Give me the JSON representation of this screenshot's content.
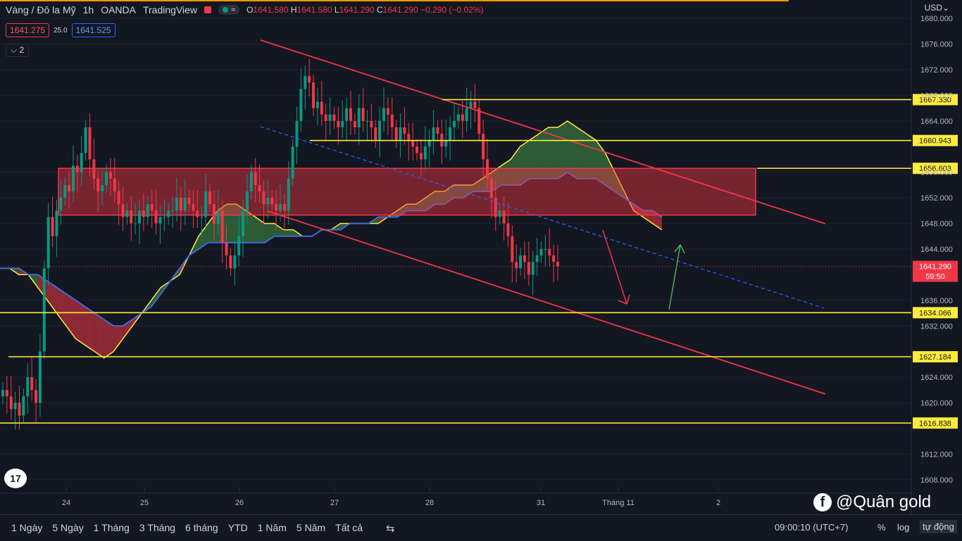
{
  "header": {
    "symbol": "Vàng / Đô la Mỹ",
    "interval": "1h",
    "broker": "OANDA",
    "platform": "TradingView",
    "ohlc": {
      "o_label": "O",
      "o": "1641.580",
      "h_label": "H",
      "h": "1641.580",
      "l_label": "L",
      "l": "1641.290",
      "c_label": "C",
      "c": "1641.290",
      "change": "−0.290 (−0.02%)"
    }
  },
  "quote": {
    "bid": "1641.275",
    "spread": "25.0",
    "ask": "1641.525"
  },
  "indicator_toggle": "2",
  "currency": "USD",
  "bottom": {
    "ranges": [
      "1 Ngày",
      "5 Ngày",
      "1 Tháng",
      "3 Tháng",
      "6 tháng",
      "YTD",
      "1 Năm",
      "5 Năm",
      "Tất cả"
    ],
    "clock": "09:00:10 (UTC+7)",
    "percent": "%",
    "log": "log",
    "auto": "tự động"
  },
  "watermark": "@Quân gold",
  "colors": {
    "up": "#089981",
    "down": "#f23645",
    "level": "#ffeb3b",
    "channel": "#f23645",
    "bg": "#131722"
  },
  "chart_data": {
    "type": "candlestick",
    "ylim": [
      1606,
      1682
    ],
    "y_ticks": [
      1608,
      1612,
      1620,
      1624,
      1632,
      1636,
      1644,
      1648,
      1652,
      1656,
      1664,
      1668,
      1672,
      1676,
      1680
    ],
    "y_tick_labels": [
      "1608.000",
      "1612.000",
      "1620.000",
      "1624.000",
      "1632.000",
      "1636.000",
      "1644.000",
      "1648.000",
      "1652.000",
      "1656.000",
      "1664.000",
      "1668.000",
      "1672.000",
      "1676.000",
      "1680.000"
    ],
    "x_labels": [
      "24",
      "25",
      "26",
      "27",
      "28",
      "31",
      "Tháng 11",
      "2"
    ],
    "current_price": "1641.290",
    "countdown": "59:50",
    "levels": [
      {
        "label": "1667.330",
        "value": 1667.33
      },
      {
        "label": "1660.943",
        "value": 1660.943
      },
      {
        "label": "1656.603",
        "value": 1656.603
      },
      {
        "label": "1634.066",
        "value": 1634.066
      },
      {
        "label": "1627.184",
        "value": 1627.184
      },
      {
        "label": "1616.838",
        "value": 1616.838
      }
    ],
    "zone": {
      "top": 1656.6,
      "bottom": 1649.3
    },
    "closes": [
      1622,
      1621,
      1619,
      1620,
      1618,
      1621,
      1624,
      1622,
      1620,
      1628,
      1641,
      1649,
      1646,
      1650,
      1652,
      1654,
      1653,
      1657,
      1656,
      1659,
      1663,
      1658,
      1655,
      1653,
      1654,
      1656,
      1655,
      1653,
      1651,
      1649,
      1650,
      1648,
      1648,
      1650,
      1649,
      1651,
      1650,
      1648,
      1649,
      1649,
      1650,
      1650,
      1652,
      1650,
      1652,
      1651,
      1650,
      1649,
      1649,
      1653,
      1651,
      1648,
      1650,
      1645,
      1643,
      1641,
      1643,
      1646,
      1650,
      1653,
      1656,
      1654,
      1653,
      1651,
      1652,
      1651,
      1650,
      1651,
      1650,
      1655,
      1660,
      1664,
      1669,
      1671,
      1670,
      1666,
      1667,
      1665,
      1664,
      1665,
      1664,
      1663,
      1664,
      1666,
      1664,
      1663,
      1666,
      1664,
      1664,
      1663,
      1661,
      1664,
      1666,
      1665,
      1663,
      1661,
      1663,
      1662,
      1661,
      1660,
      1659,
      1658,
      1660,
      1661,
      1663,
      1662,
      1660,
      1661,
      1663,
      1664,
      1665,
      1664,
      1666,
      1667,
      1666,
      1662,
      1658,
      1655,
      1652,
      1649,
      1650,
      1648,
      1646,
      1642,
      1641,
      1643,
      1642,
      1640,
      1642,
      1643,
      1644,
      1644,
      1643,
      1642,
      1641.3
    ],
    "ichimoku_cloud": {
      "span_a": [
        1641,
        1641,
        1640,
        1640,
        1638,
        1636,
        1634,
        1632,
        1630,
        1629,
        1628,
        1627,
        1628,
        1630,
        1632,
        1634,
        1636,
        1638,
        1639,
        1640,
        1643,
        1646,
        1648,
        1650,
        1651,
        1651,
        1650,
        1649,
        1648,
        1648,
        1647,
        1647,
        1646,
        1646,
        1647,
        1647,
        1648,
        1648,
        1648,
        1648,
        1648,
        1649,
        1650,
        1651,
        1651,
        1652,
        1653,
        1653,
        1654,
        1654,
        1654,
        1655,
        1656,
        1657,
        1658,
        1660,
        1661,
        1662,
        1663,
        1663,
        1664,
        1663,
        1662,
        1661,
        1659,
        1656,
        1653,
        1650,
        1649,
        1648,
        1647
      ],
      "span_b": [
        1641,
        1641,
        1641,
        1640,
        1640,
        1639,
        1638,
        1637,
        1636,
        1635,
        1634,
        1633,
        1632,
        1632,
        1633,
        1634,
        1635,
        1637,
        1639,
        1641,
        1643,
        1644,
        1645,
        1645,
        1645,
        1645,
        1645,
        1645,
        1645,
        1646,
        1646,
        1646,
        1646,
        1646,
        1647,
        1647,
        1647,
        1648,
        1648,
        1648,
        1649,
        1649,
        1649,
        1650,
        1650,
        1650,
        1651,
        1651,
        1652,
        1652,
        1653,
        1653,
        1653,
        1654,
        1654,
        1654,
        1655,
        1655,
        1655,
        1655,
        1656,
        1655,
        1655,
        1655,
        1654,
        1653,
        1652,
        1651,
        1650,
        1650,
        1649
      ]
    }
  }
}
